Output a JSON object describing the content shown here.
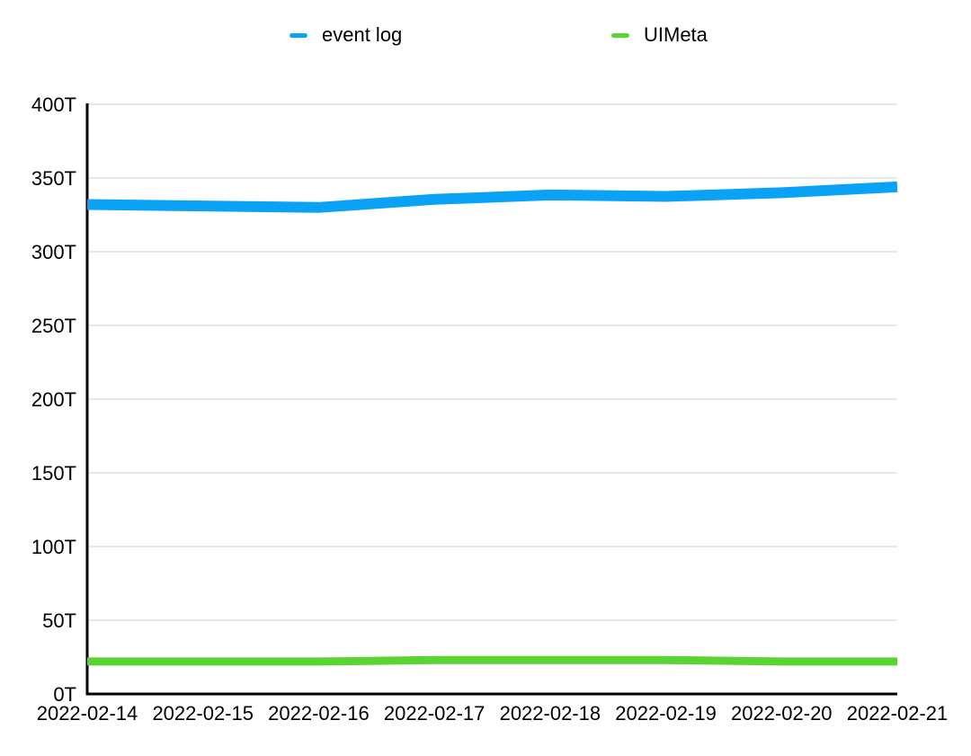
{
  "legend": {
    "items": [
      {
        "label": "event log",
        "color": "#0aa2f5"
      },
      {
        "label": "UIMeta",
        "color": "#59d433"
      }
    ]
  },
  "chart_data": {
    "type": "line",
    "title": "",
    "xlabel": "",
    "ylabel": "",
    "x": [
      "2022-02-14",
      "2022-02-15",
      "2022-02-16",
      "2022-02-17",
      "2022-02-18",
      "2022-02-19",
      "2022-02-20",
      "2022-02-21"
    ],
    "series": [
      {
        "name": "event log",
        "color": "#0aa2f5",
        "values": [
          332,
          331,
          330,
          335.5,
          338.5,
          337.5,
          340,
          344
        ]
      },
      {
        "name": "UIMeta",
        "color": "#59d433",
        "values": [
          22,
          22,
          22,
          23,
          23,
          23,
          22,
          22
        ]
      }
    ],
    "ylim": [
      0,
      400
    ],
    "ytick_step": 50,
    "ytick_labels": [
      "0T",
      "50T",
      "100T",
      "150T",
      "200T",
      "250T",
      "300T",
      "350T",
      "400T"
    ],
    "unit_suffix": "T",
    "grid": true,
    "legend_position": "top",
    "colors": {
      "grid": "#e1e1e1",
      "axis": "#000000",
      "text": "#000000",
      "background": "#ffffff"
    }
  }
}
